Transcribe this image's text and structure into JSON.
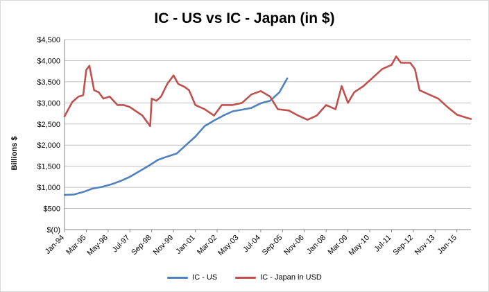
{
  "chart_data": {
    "type": "line",
    "title": "IC - US vs IC - Japan (in $)",
    "ylabel": "Billions $",
    "xlabel": "",
    "ylim": [
      0,
      4500
    ],
    "yticks": [
      0,
      500,
      1000,
      1500,
      2000,
      2500,
      3000,
      3500,
      4000,
      4500
    ],
    "ytick_labels": [
      "$(0)",
      "$500",
      "$1,000",
      "$1,500",
      "$2,000",
      "$2,500",
      "$3,000",
      "$3,500",
      "$4,000",
      "$4,500"
    ],
    "x_start": "Jan-94",
    "x_end": "Oct-15",
    "x_tick_labels": [
      "Jan-94",
      "Mar-95",
      "May-96",
      "Jul-97",
      "Sep-98",
      "Nov-99",
      "Jan-01",
      "Mar-02",
      "May-03",
      "Jul-04",
      "Sep-05",
      "Nov-06",
      "Jan-08",
      "Mar-09",
      "May-10",
      "Jul-11",
      "Sep-12",
      "Nov-13",
      "Jan-15"
    ],
    "grid": "horizontal",
    "legend": "bottom",
    "series": [
      {
        "name": "IC - US",
        "color": "#4f81bd",
        "points": [
          [
            "Jan-94",
            820
          ],
          [
            "Jul-94",
            830
          ],
          [
            "Jan-95",
            890
          ],
          [
            "Jul-95",
            970
          ],
          [
            "Jan-96",
            1010
          ],
          [
            "Jul-96",
            1070
          ],
          [
            "Jan-97",
            1150
          ],
          [
            "Jul-97",
            1250
          ],
          [
            "Jan-98",
            1380
          ],
          [
            "Jul-98",
            1510
          ],
          [
            "Jan-99",
            1650
          ],
          [
            "Jul-99",
            1730
          ],
          [
            "Jan-00",
            1800
          ],
          [
            "Jul-00",
            2000
          ],
          [
            "Jan-01",
            2200
          ],
          [
            "Jul-01",
            2450
          ],
          [
            "Jan-02",
            2580
          ],
          [
            "Jul-02",
            2700
          ],
          [
            "Jan-03",
            2800
          ],
          [
            "Jul-03",
            2840
          ],
          [
            "Jan-04",
            2880
          ],
          [
            "Jul-04",
            2990
          ],
          [
            "Jan-05",
            3050
          ],
          [
            "Jul-05",
            3250
          ],
          [
            "Dec-05",
            3580
          ]
        ]
      },
      {
        "name": "IC - Japan in USD",
        "color": "#c0504d",
        "points": [
          [
            "Jan-94",
            2680
          ],
          [
            "Jun-94",
            3020
          ],
          [
            "Oct-94",
            3150
          ],
          [
            "Jan-95",
            3180
          ],
          [
            "Mar-95",
            3780
          ],
          [
            "May-95",
            3880
          ],
          [
            "Aug-95",
            3300
          ],
          [
            "Nov-95",
            3250
          ],
          [
            "Feb-96",
            3100
          ],
          [
            "Jun-96",
            3150
          ],
          [
            "Nov-96",
            2950
          ],
          [
            "Mar-97",
            2950
          ],
          [
            "Jul-97",
            2900
          ],
          [
            "Nov-97",
            2800
          ],
          [
            "Mar-98",
            2700
          ],
          [
            "Aug-98",
            2450
          ],
          [
            "Sep-98",
            3100
          ],
          [
            "Dec-98",
            3050
          ],
          [
            "Mar-99",
            3150
          ],
          [
            "Jul-99",
            3450
          ],
          [
            "Nov-99",
            3650
          ],
          [
            "Feb-00",
            3450
          ],
          [
            "Jun-00",
            3380
          ],
          [
            "Sep-00",
            3300
          ],
          [
            "Jan-01",
            2950
          ],
          [
            "Jul-01",
            2850
          ],
          [
            "Jan-02",
            2700
          ],
          [
            "Jun-02",
            2950
          ],
          [
            "Jan-03",
            2950
          ],
          [
            "Jul-03",
            3000
          ],
          [
            "Jan-04",
            3200
          ],
          [
            "Jul-04",
            3280
          ],
          [
            "Jan-05",
            3150
          ],
          [
            "Jun-05",
            2850
          ],
          [
            "Jan-06",
            2820
          ],
          [
            "Jul-06",
            2700
          ],
          [
            "Jan-07",
            2600
          ],
          [
            "Jul-07",
            2700
          ],
          [
            "Jan-08",
            2950
          ],
          [
            "Jul-08",
            2850
          ],
          [
            "Nov-08",
            3400
          ],
          [
            "Mar-09",
            3000
          ],
          [
            "Jul-09",
            3250
          ],
          [
            "Jan-10",
            3400
          ],
          [
            "Jul-10",
            3600
          ],
          [
            "Jan-11",
            3800
          ],
          [
            "Jul-11",
            3900
          ],
          [
            "Oct-11",
            4100
          ],
          [
            "Jan-12",
            3950
          ],
          [
            "Jul-12",
            3950
          ],
          [
            "Oct-12",
            3800
          ],
          [
            "Jan-13",
            3300
          ],
          [
            "Jul-13",
            3200
          ],
          [
            "Jan-14",
            3100
          ],
          [
            "Jul-14",
            2900
          ],
          [
            "Jan-15",
            2720
          ],
          [
            "Jul-15",
            2650
          ],
          [
            "Oct-15",
            2620
          ]
        ]
      }
    ]
  }
}
